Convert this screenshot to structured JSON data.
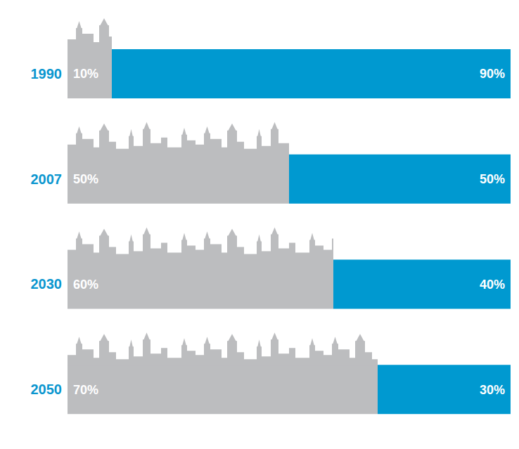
{
  "chart_data": {
    "type": "bar",
    "orientation": "horizontal",
    "stacked": true,
    "categories": [
      "1990",
      "2007",
      "2030",
      "2050"
    ],
    "series": [
      {
        "color": "#bcbdbf",
        "values": [
          10,
          50,
          60,
          70
        ],
        "value_labels": [
          "10%",
          "50%",
          "60%",
          "70%"
        ]
      },
      {
        "color": "#0099d0",
        "values": [
          90,
          50,
          40,
          30
        ],
        "value_labels": [
          "90%",
          "50%",
          "40%",
          "30%"
        ]
      }
    ],
    "xlim": [
      0,
      100
    ],
    "data_labels": true,
    "tick_labels": "y",
    "grid": false
  }
}
